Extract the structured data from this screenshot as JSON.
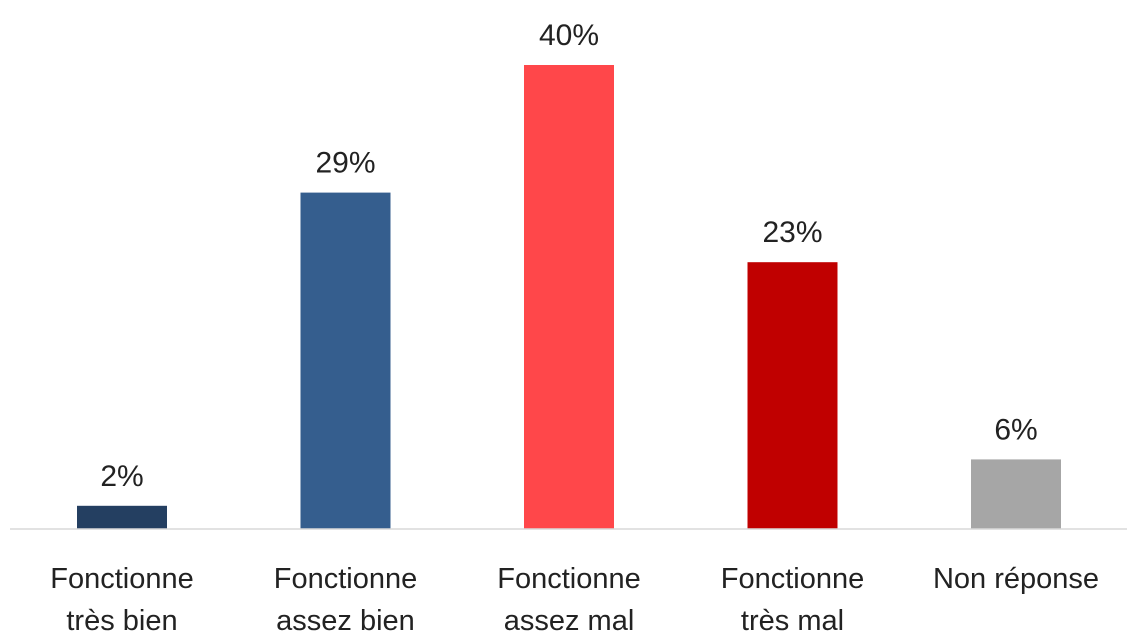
{
  "chart_data": {
    "type": "bar",
    "categories": [
      [
        "Fonctionne",
        "très bien"
      ],
      [
        "Fonctionne",
        "assez bien"
      ],
      [
        "Fonctionne",
        "assez mal"
      ],
      [
        "Fonctionne",
        "très mal"
      ],
      [
        "Non réponse"
      ]
    ],
    "values": [
      2,
      29,
      40,
      23,
      6
    ],
    "value_labels": [
      "2%",
      "29%",
      "40%",
      "23%",
      "6%"
    ],
    "colors": [
      "#243f61",
      "#355e8e",
      "#ff474a",
      "#c00000",
      "#a6a6a6"
    ],
    "title": "",
    "xlabel": "",
    "ylabel": "",
    "ylim": [
      0,
      40
    ],
    "grid": false,
    "axis_color": "#d9d9d9"
  }
}
